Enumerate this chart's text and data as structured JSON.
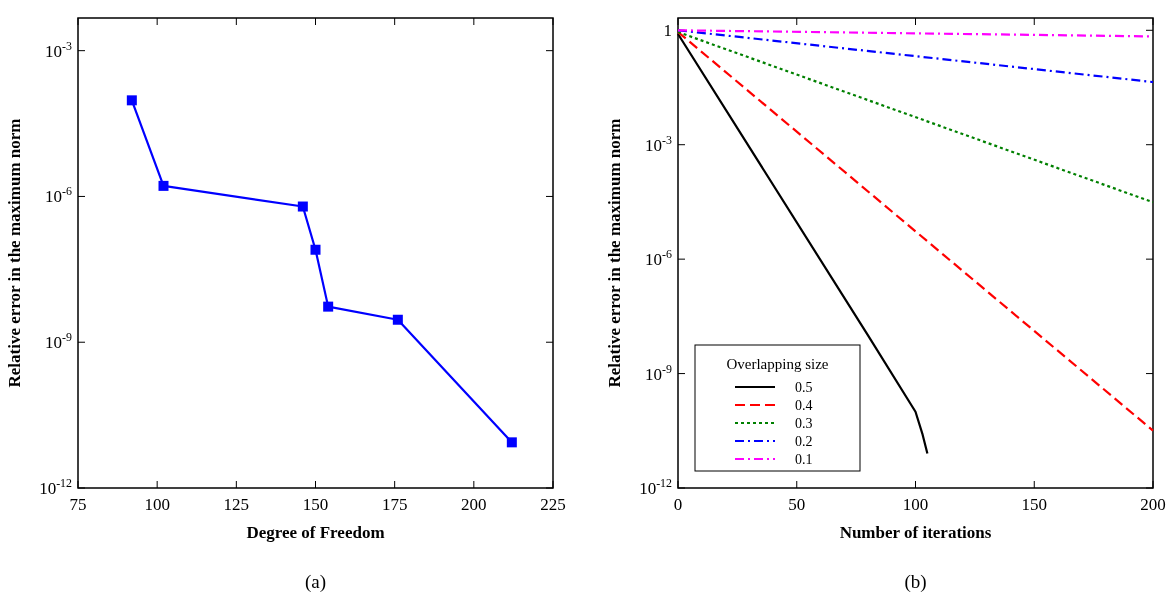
{
  "chart_data": [
    {
      "type": "line",
      "xlabel": "Degree of Freedom",
      "ylabel": "Relative error in the maximum norm",
      "annotations": [
        "(a)"
      ],
      "log": "y",
      "xlim": [
        75,
        225
      ],
      "xticks": [
        75,
        100,
        125,
        150,
        175,
        200,
        225
      ],
      "ylim": [
        1e-12,
        0.0047
      ],
      "yticks": [
        {
          "value": 0.001,
          "label": "10$^{-3}$"
        },
        {
          "value": 1e-06,
          "label": "10$^{-6}$"
        },
        {
          "value": 1e-09,
          "label": "10$^{-9}$"
        },
        {
          "value": 1e-12,
          "label": "10$^{-12}$"
        }
      ],
      "marker": "square",
      "line_style": "solid",
      "x": [
        92,
        102,
        146,
        150,
        154,
        176,
        212
      ],
      "series": [
        {
          "color": "#0000ff",
          "values": [
            9.5e-05,
            1.65e-06,
            6.2e-07,
            8e-08,
            5.4e-09,
            2.9e-09,
            8.7e-12
          ]
        }
      ]
    },
    {
      "type": "line",
      "xlabel": "Number of iterations",
      "ylabel": "Relative error in the maximum norm",
      "annotations": [
        "(b)"
      ],
      "log": "y",
      "xlim": [
        0,
        200
      ],
      "xticks": [
        0,
        50,
        100,
        150,
        200
      ],
      "ylim": [
        1e-12,
        2.1
      ],
      "yticks": [
        1,
        {
          "value": 0.001,
          "label": "10$^{-3}$"
        },
        {
          "value": 1e-06,
          "label": "10$^{-6}$"
        },
        {
          "value": 1e-09,
          "label": "10$^{-9}$"
        },
        {
          "value": 1e-12,
          "label": "10$^{-12}$"
        }
      ],
      "legend": "bottom left",
      "legend_title": "Overlapping size",
      "marker": "none",
      "series": [
        {
          "name": "0.5",
          "color": "#000000",
          "line_style": "solid",
          "x": [
            0,
            80,
            100,
            103,
            105
          ],
          "values": [
            0.8,
            1e-08,
            1e-10,
            2.5e-11,
            8e-12
          ]
        },
        {
          "name": "0.4",
          "color": "#ff0000",
          "line_style": "dashed",
          "x": [
            0,
            200
          ],
          "values": [
            0.9,
            3.2e-11
          ]
        },
        {
          "name": "0.3",
          "color": "#008000",
          "line_style": "dotted",
          "x": [
            0,
            200
          ],
          "values": [
            0.9,
            3.1e-05
          ]
        },
        {
          "name": "0.2",
          "color": "#0000ff",
          "line_style": "dashdot",
          "x": [
            0,
            200
          ],
          "values": [
            1,
            0.044
          ]
        },
        {
          "name": "0.1",
          "color": "#ff00ff",
          "line_style": "dashdot",
          "x": [
            0,
            200
          ],
          "values": [
            1,
            0.69
          ]
        }
      ]
    }
  ]
}
